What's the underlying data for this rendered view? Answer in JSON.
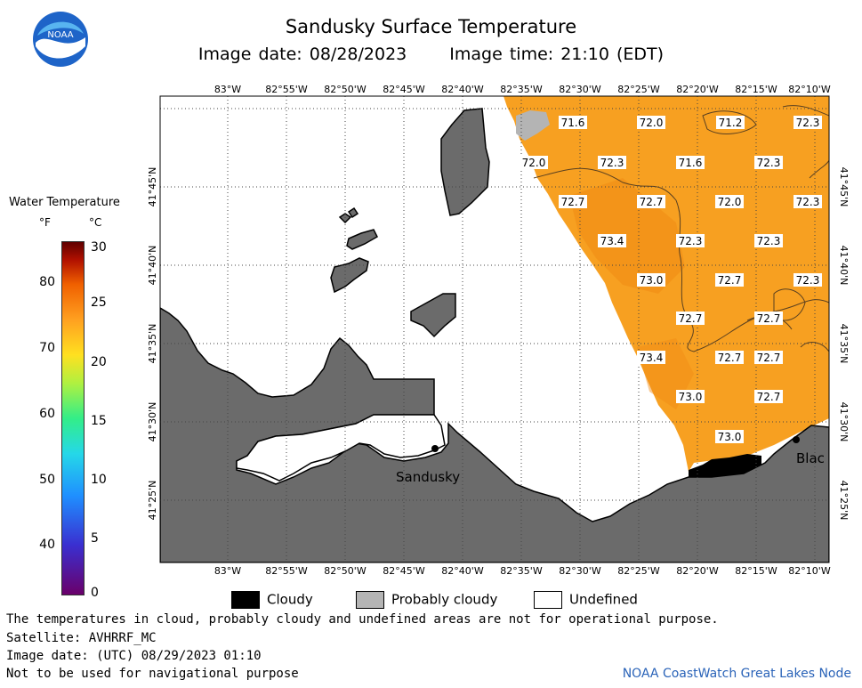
{
  "title": "Sandusky Surface Temperature",
  "image_date_local": "Image date: 08/28/2023",
  "image_time_local": "Image time: 21:10 (EDT)",
  "logo_text": "NOAA",
  "legend": {
    "title": "Water Temperature",
    "unit_f": "°F",
    "unit_c": "°C",
    "f_ticks": [
      "40",
      "50",
      "60",
      "70",
      "80"
    ],
    "c_ticks": [
      "0",
      "5",
      "10",
      "15",
      "20",
      "25",
      "30"
    ]
  },
  "longitude_labels": [
    "83°W",
    "82°55'W",
    "82°50'W",
    "82°45'W",
    "82°40'W",
    "82°35'W",
    "82°30'W",
    "82°25'W",
    "82°20'W",
    "82°15'W",
    "82°10'W"
  ],
  "latitude_labels": [
    "41°45'N",
    "41°40'N",
    "41°35'N",
    "41°30'N",
    "41°25'N"
  ],
  "place_labels": {
    "sandusky": "Sandusky",
    "black_river": "Blac"
  },
  "temperatures": [
    "71.6",
    "72.0",
    "71.2",
    "72.3",
    "72.0",
    "72.3",
    "71.6",
    "72.3",
    "72.7",
    "72.7",
    "72.0",
    "72.3",
    "73.4",
    "72.3",
    "72.3",
    "73.0",
    "72.7",
    "72.3",
    "72.7",
    "72.7",
    "73.4",
    "72.7",
    "72.7",
    "73.0",
    "72.7",
    "73.0"
  ],
  "key": {
    "cloudy": "Cloudy",
    "probably_cloudy": "Probably cloudy",
    "undefined": "Undefined"
  },
  "footer": {
    "note": "The temperatures in cloud, probably cloudy and undefined areas are not for operational purpose.",
    "satellite": "Satellite: AVHRRF_MC",
    "utc_date": "Image date: (UTC) 08/29/2023  01:10",
    "nav_warning": "Not to be used for navigational purpose",
    "credit": "NOAA CoastWatch Great Lakes Node"
  },
  "colors": {
    "land": "#6b6b6b",
    "water_warm": "#f7a021",
    "cloudy": "#000000",
    "probably_cloudy": "#b4b4b4",
    "undefined": "#ffffff"
  }
}
